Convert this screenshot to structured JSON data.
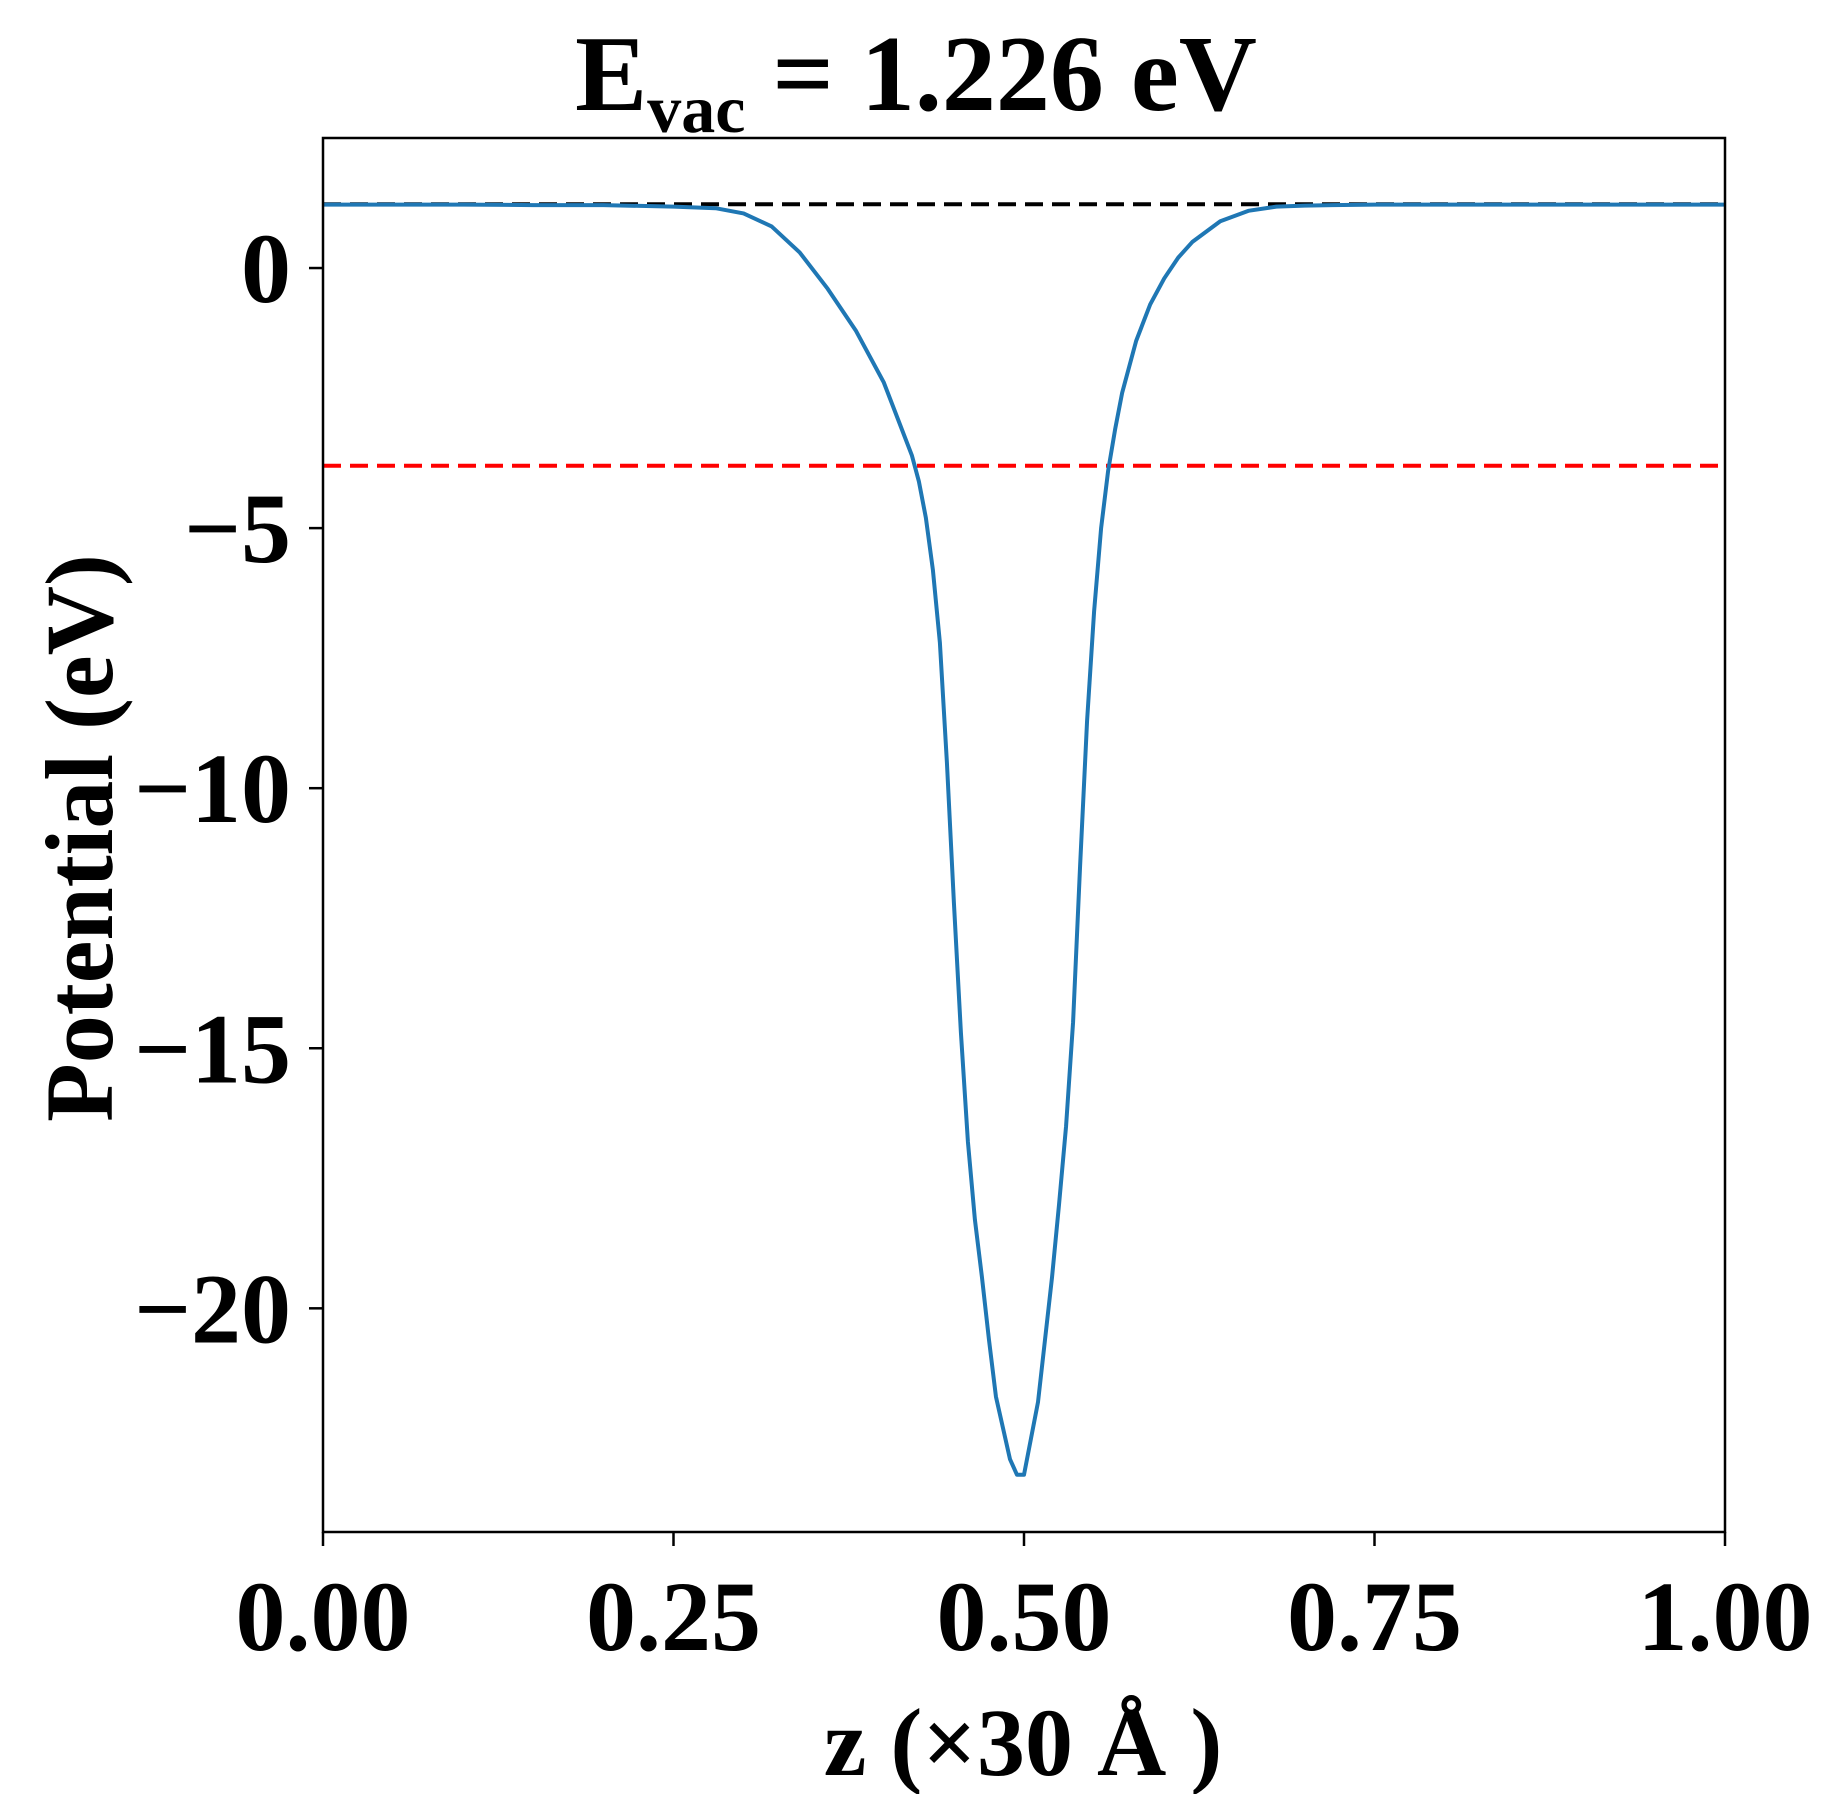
{
  "chart_data": {
    "type": "line",
    "title": "E",
    "title_subscript": "vac",
    "title_suffix": " = 1.226 eV",
    "xlabel": "z (×30 Å )",
    "ylabel": "Potential (eV)",
    "xlim": [
      0,
      1
    ],
    "ylim": [
      -24.3,
      2.5
    ],
    "grid": false,
    "x_ticks": [
      0,
      0.25,
      0.5,
      0.75,
      1.0
    ],
    "x_tick_labels": [
      "0.00",
      "0.25",
      "0.50",
      "0.75",
      "1.00"
    ],
    "y_ticks": [
      0,
      -5,
      -10,
      -15,
      -20
    ],
    "y_tick_labels": [
      "0",
      "−5",
      "−10",
      "−15",
      "−20"
    ],
    "reference_lines": [
      {
        "y": 1.226,
        "color": "#000000",
        "style": "dashed"
      },
      {
        "y": -3.8,
        "color": "#ff0000",
        "style": "dashed"
      }
    ],
    "series": [
      {
        "color": "#1f77b4",
        "x": [
          0.0,
          0.05,
          0.1,
          0.15,
          0.2,
          0.25,
          0.28,
          0.3,
          0.32,
          0.34,
          0.36,
          0.38,
          0.39,
          0.4,
          0.41,
          0.42,
          0.425,
          0.43,
          0.435,
          0.44,
          0.445,
          0.45,
          0.455,
          0.46,
          0.465,
          0.47,
          0.475,
          0.48,
          0.485,
          0.49,
          0.495,
          0.5,
          0.505,
          0.51,
          0.515,
          0.52,
          0.525,
          0.53,
          0.535,
          0.54,
          0.545,
          0.55,
          0.555,
          0.56,
          0.565,
          0.57,
          0.575,
          0.58,
          0.59,
          0.6,
          0.61,
          0.62,
          0.64,
          0.66,
          0.68,
          0.7,
          0.72,
          0.75,
          0.8,
          0.85,
          0.9,
          0.95,
          1.0
        ],
        "y": [
          1.22,
          1.22,
          1.22,
          1.21,
          1.21,
          1.18,
          1.15,
          1.05,
          0.8,
          0.3,
          -0.4,
          -1.2,
          -1.7,
          -2.2,
          -2.9,
          -3.6,
          -4.1,
          -4.8,
          -5.8,
          -7.2,
          -9.5,
          -12.2,
          -14.7,
          -16.8,
          -18.3,
          -19.4,
          -20.6,
          -21.7,
          -22.3,
          -22.9,
          -23.2,
          -23.2,
          -22.5,
          -21.8,
          -20.6,
          -19.4,
          -18.0,
          -16.5,
          -14.5,
          -11.5,
          -8.7,
          -6.6,
          -5.0,
          -3.9,
          -3.1,
          -2.4,
          -1.9,
          -1.4,
          -0.7,
          -0.2,
          0.2,
          0.5,
          0.9,
          1.1,
          1.18,
          1.2,
          1.21,
          1.22,
          1.22,
          1.22,
          1.22,
          1.22,
          1.22
        ]
      }
    ]
  }
}
